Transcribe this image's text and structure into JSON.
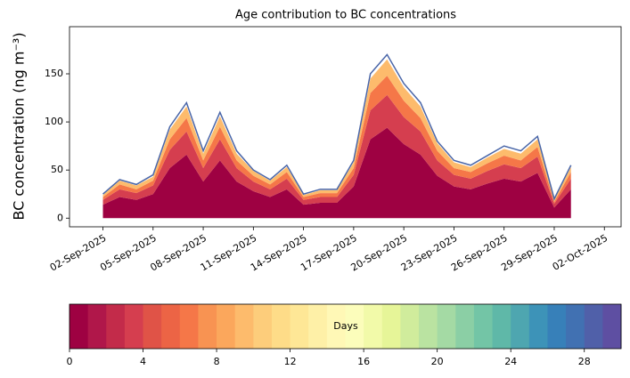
{
  "chart_data": {
    "type": "stacked-area",
    "title": "Age contribution to BC concentrations",
    "ylabel": "BC concentration (ng m⁻³)",
    "x": [
      "02-Sep-2025",
      "03-Sep-2025",
      "04-Sep-2025",
      "05-Sep-2025",
      "06-Sep-2025",
      "07-Sep-2025",
      "08-Sep-2025",
      "09-Sep-2025",
      "10-Sep-2025",
      "11-Sep-2025",
      "12-Sep-2025",
      "13-Sep-2025",
      "14-Sep-2025",
      "15-Sep-2025",
      "16-Sep-2025",
      "17-Sep-2025",
      "18-Sep-2025",
      "19-Sep-2025",
      "20-Sep-2025",
      "21-Sep-2025",
      "22-Sep-2025",
      "23-Sep-2025",
      "24-Sep-2025",
      "25-Sep-2025",
      "26-Sep-2025",
      "27-Sep-2025",
      "28-Sep-2025",
      "29-Sep-2025",
      "30-Sep-2025"
    ],
    "xlim": [
      "31-Aug-2025",
      "03-Oct-2025"
    ],
    "xticks": [
      "02-Sep-2025",
      "05-Sep-2025",
      "08-Sep-2025",
      "11-Sep-2025",
      "14-Sep-2025",
      "17-Sep-2025",
      "20-Sep-2025",
      "23-Sep-2025",
      "26-Sep-2025",
      "29-Sep-2025",
      "02-Oct-2025"
    ],
    "ylim": [
      -9,
      199
    ],
    "yticks": [
      0,
      50,
      100,
      150
    ],
    "series": [
      {
        "kind": "area",
        "color": "#9e0142",
        "values": [
          14,
          22,
          19,
          25,
          52,
          66,
          38,
          60,
          38,
          28,
          22,
          30,
          14,
          16,
          16,
          33,
          82,
          94,
          77,
          66,
          44,
          33,
          30,
          36,
          41,
          38,
          47,
          11,
          30
        ]
      },
      {
        "kind": "area",
        "color": "#d53e4f",
        "values": [
          5,
          8,
          7,
          9,
          19,
          24,
          14,
          22,
          14,
          10,
          8,
          11,
          5,
          6,
          6,
          12,
          30,
          34,
          28,
          24,
          16,
          12,
          11,
          13,
          15,
          14,
          17,
          4,
          11
        ]
      },
      {
        "kind": "area",
        "color": "#f57748",
        "values": [
          3,
          5,
          4,
          5,
          11,
          14,
          8,
          13,
          8,
          6,
          5,
          7,
          3,
          4,
          4,
          7,
          18,
          20,
          17,
          14,
          10,
          7,
          7,
          8,
          9,
          8,
          10,
          2,
          7
        ]
      },
      {
        "kind": "area",
        "color": "#fdbb6c",
        "values": [
          2,
          4,
          4,
          4,
          10,
          12,
          7,
          11,
          7,
          5,
          4,
          5,
          2,
          3,
          3,
          6,
          15,
          17,
          14,
          12,
          8,
          6,
          5,
          6,
          7,
          7,
          8,
          2,
          5
        ]
      },
      {
        "kind": "line",
        "color": "#4a66a8",
        "values": [
          25,
          40,
          35,
          45,
          95,
          120,
          70,
          110,
          70,
          50,
          40,
          55,
          25,
          30,
          30,
          60,
          150,
          170,
          140,
          120,
          80,
          60,
          55,
          65,
          75,
          70,
          85,
          20,
          55
        ]
      }
    ],
    "colorbar": {
      "label": "Days",
      "lim": [
        0,
        30
      ],
      "ticks": [
        0,
        4,
        8,
        12,
        16,
        20,
        24,
        28
      ],
      "colors": [
        "#9e0142",
        "#b0174a",
        "#c32b4a",
        "#d53e4f",
        "#e05347",
        "#ec6445",
        "#f57748",
        "#f89352",
        "#fba75c",
        "#fdbb6c",
        "#fdcd7b",
        "#fedc88",
        "#fee796",
        "#fef0a7",
        "#fff8b6",
        "#fcfdbb",
        "#f2faa9",
        "#e6f598",
        "#d0ec9c",
        "#bae3a1",
        "#a4daa4",
        "#8bcfa5",
        "#73c5a6",
        "#5fb8a8",
        "#4ea6b0",
        "#3d93b8",
        "#3780b9",
        "#4171b2",
        "#5060a9",
        "#5e4fa2"
      ]
    }
  }
}
